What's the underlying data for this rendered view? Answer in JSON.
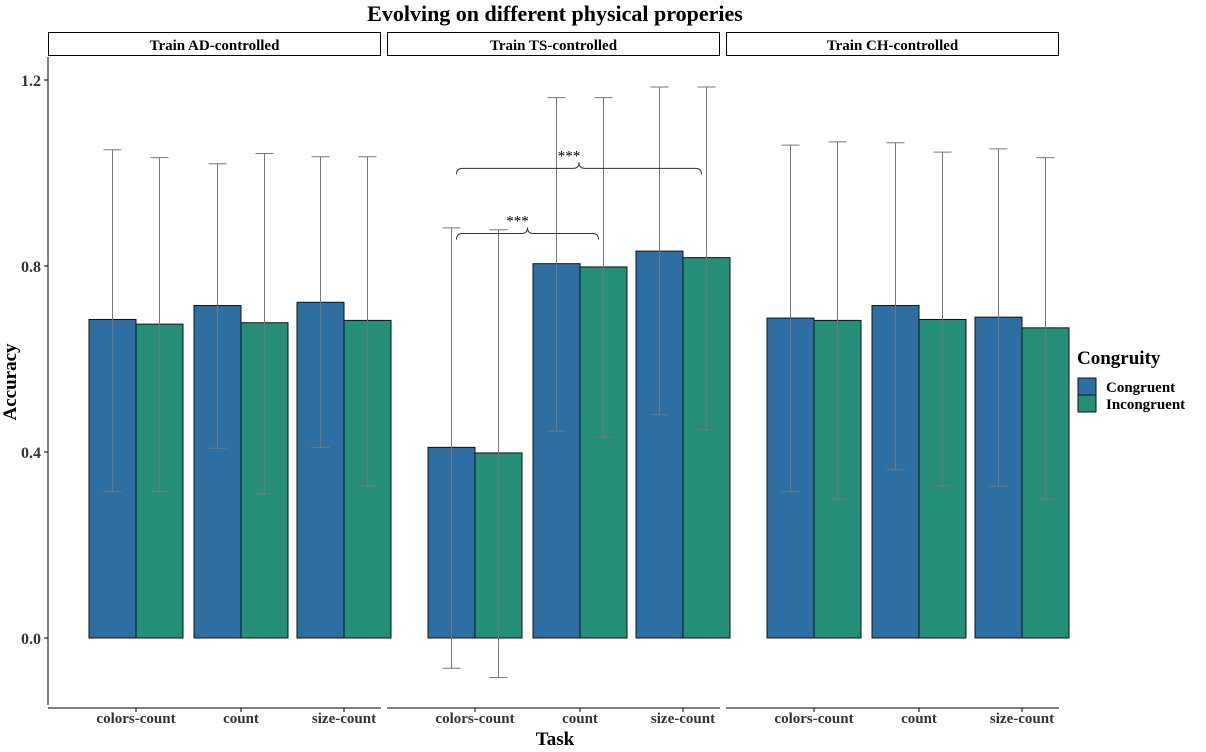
{
  "chart_data": {
    "type": "bar",
    "title": "Evolving on different physical properies",
    "xlabel": "Task",
    "ylabel": "Accuracy",
    "ylim": [
      -0.15,
      1.25
    ],
    "yticks": [
      0.0,
      0.4,
      0.8,
      1.2
    ],
    "ytick_labels": [
      "0.0",
      "0.4",
      "0.8",
      "1.2"
    ],
    "grid": false,
    "legend": {
      "title": "Congruity",
      "position": "right",
      "entries": [
        "Congruent",
        "Incongruent"
      ]
    },
    "colors": {
      "Congruent": "#2e6fa3",
      "Incongruent": "#268f79"
    },
    "categories": [
      "colors-count",
      "count",
      "size-count"
    ],
    "facets": [
      {
        "label": "Train AD-controlled",
        "series": [
          {
            "name": "Congruent",
            "values": [
              0.685,
              0.715,
              0.722
            ],
            "err_low": [
              0.315,
              0.408,
              0.41
            ],
            "err_high": [
              1.05,
              1.02,
              1.035
            ]
          },
          {
            "name": "Incongruent",
            "values": [
              0.675,
              0.678,
              0.683
            ],
            "err_low": [
              0.315,
              0.31,
              0.327
            ],
            "err_high": [
              1.033,
              1.042,
              1.035
            ]
          }
        ],
        "significance": []
      },
      {
        "label": "Train TS-controlled",
        "series": [
          {
            "name": "Congruent",
            "values": [
              0.41,
              0.805,
              0.832
            ],
            "err_low": [
              -0.065,
              0.445,
              0.48
            ],
            "err_high": [
              0.882,
              1.162,
              1.185
            ]
          },
          {
            "name": "Incongruent",
            "values": [
              0.398,
              0.798,
              0.818
            ],
            "err_low": [
              -0.085,
              0.432,
              0.448
            ],
            "err_high": [
              0.878,
              1.162,
              1.185
            ]
          }
        ],
        "significance": [
          {
            "label": "***",
            "from": "colors-count",
            "to": "count",
            "level": 0.87
          },
          {
            "label": "***",
            "from": "colors-count",
            "to": "size-count",
            "level": 1.01
          }
        ]
      },
      {
        "label": "Train CH-controlled",
        "series": [
          {
            "name": "Congruent",
            "values": [
              0.688,
              0.715,
              0.69
            ],
            "err_low": [
              0.315,
              0.362,
              0.327
            ],
            "err_high": [
              1.06,
              1.065,
              1.052
            ]
          },
          {
            "name": "Incongruent",
            "values": [
              0.683,
              0.685,
              0.667
            ],
            "err_low": [
              0.298,
              0.327,
              0.298
            ],
            "err_high": [
              1.067,
              1.045,
              1.033
            ]
          }
        ],
        "significance": []
      }
    ]
  }
}
